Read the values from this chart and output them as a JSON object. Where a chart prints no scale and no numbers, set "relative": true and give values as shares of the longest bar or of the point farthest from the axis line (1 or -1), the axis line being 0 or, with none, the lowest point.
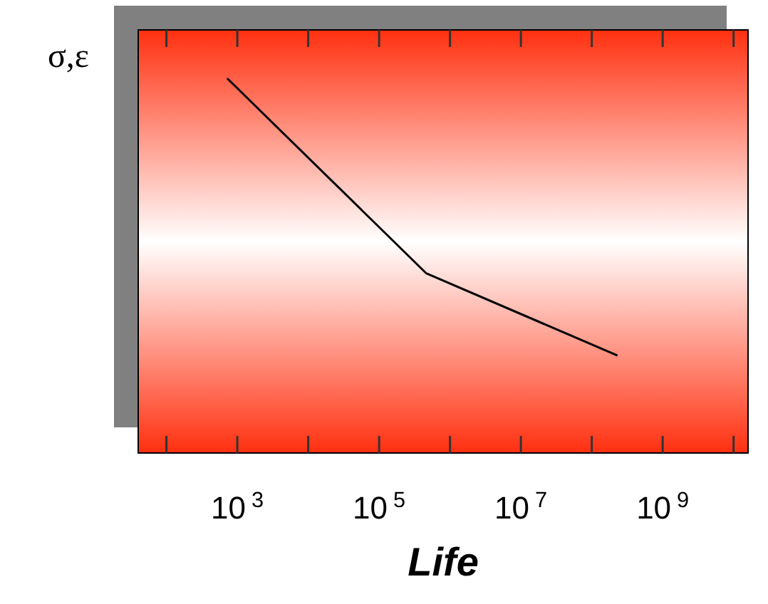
{
  "chart_data": {
    "type": "line",
    "relative": true,
    "log": "x",
    "ylabel": "σ,ε",
    "xlabel": "Life",
    "xlim": [
      40,
      16000000000
    ],
    "xticks": [
      {
        "value": 100,
        "label": null
      },
      {
        "value": 1000,
        "label": "10$^{3}$"
      },
      {
        "value": 10000,
        "label": null
      },
      {
        "value": 100000,
        "label": "10$^{5}$"
      },
      {
        "value": 1000000,
        "label": null
      },
      {
        "value": 10000000,
        "label": "10$^{7}$"
      },
      {
        "value": 100000000,
        "label": null
      },
      {
        "value": 1000000000,
        "label": "10$^{9}$"
      },
      {
        "value": 10000000000,
        "label": null
      }
    ],
    "x": [
      720,
      460000,
      230000000
    ],
    "series": [
      {
        "color": "#000000",
        "values": [
          1,
          0.48,
          0.26
        ]
      }
    ]
  }
}
